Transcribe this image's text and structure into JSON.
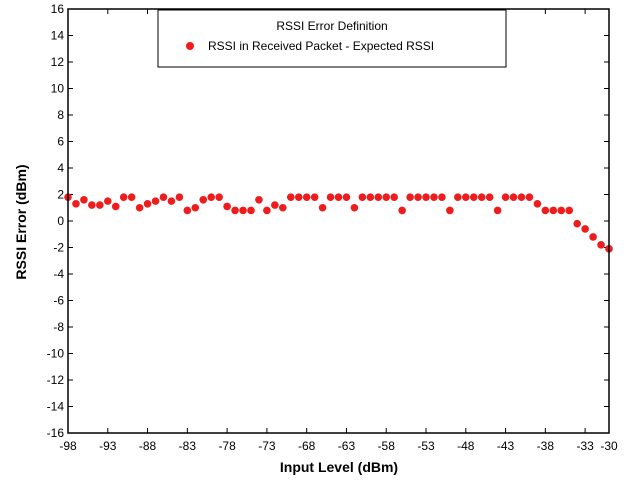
{
  "chart_data": {
    "type": "scatter",
    "xlabel": "Input Level (dBm)",
    "ylabel": "RSSI Error (dBm)",
    "xlim": [
      -98,
      -30
    ],
    "ylim": [
      -16,
      16
    ],
    "x_ticks": [
      "-98",
      "-93",
      "-88",
      "-83",
      "-78",
      "-73",
      "-68",
      "-63",
      "-58",
      "-53",
      "-48",
      "-43",
      "-38",
      "-33",
      "-30"
    ],
    "y_ticks": [
      "16",
      "14",
      "12",
      "10",
      "8",
      "6",
      "4",
      "2",
      "0",
      "-2",
      "-4",
      "-6",
      "-8",
      "-10",
      "-12",
      "-14",
      "-16"
    ],
    "grid": false,
    "legend_position": "top-center",
    "legend_title": "RSSI Error Definition",
    "series": [
      {
        "name": "RSSI in Received Packet - Expected RSSI",
        "color": "#ee1c1c",
        "marker": "circle",
        "x": [
          -98,
          -97,
          -96,
          -95,
          -94,
          -93,
          -92,
          -91,
          -90,
          -89,
          -88,
          -87,
          -86,
          -85,
          -84,
          -83,
          -82,
          -81,
          -80,
          -79,
          -78,
          -77,
          -76,
          -75,
          -74,
          -73,
          -72,
          -71,
          -70,
          -69,
          -68,
          -67,
          -66,
          -65,
          -64,
          -63,
          -62,
          -61,
          -60,
          -59,
          -58,
          -57,
          -56,
          -55,
          -54,
          -53,
          -52,
          -51,
          -50,
          -49,
          -48,
          -47,
          -46,
          -45,
          -44,
          -43,
          -42,
          -41,
          -40,
          -39,
          -38,
          -37,
          -36,
          -35,
          -34,
          -33,
          -32,
          -31,
          -30
        ],
        "y": [
          1.8,
          1.3,
          1.6,
          1.2,
          1.2,
          1.5,
          1.1,
          1.8,
          1.8,
          1.0,
          1.3,
          1.5,
          1.8,
          1.5,
          1.8,
          0.8,
          1.0,
          1.6,
          1.8,
          1.8,
          1.1,
          0.8,
          0.8,
          0.8,
          1.6,
          0.8,
          1.2,
          1.0,
          1.8,
          1.8,
          1.8,
          1.8,
          1.0,
          1.8,
          1.8,
          1.8,
          1.0,
          1.8,
          1.8,
          1.8,
          1.8,
          1.8,
          0.8,
          1.8,
          1.8,
          1.8,
          1.8,
          1.8,
          0.8,
          1.8,
          1.8,
          1.8,
          1.8,
          1.8,
          0.8,
          1.8,
          1.8,
          1.8,
          1.8,
          1.3,
          0.8,
          0.8,
          0.8,
          0.8,
          -0.2,
          -0.6,
          -1.2,
          -1.8,
          -2.1
        ]
      }
    ]
  }
}
